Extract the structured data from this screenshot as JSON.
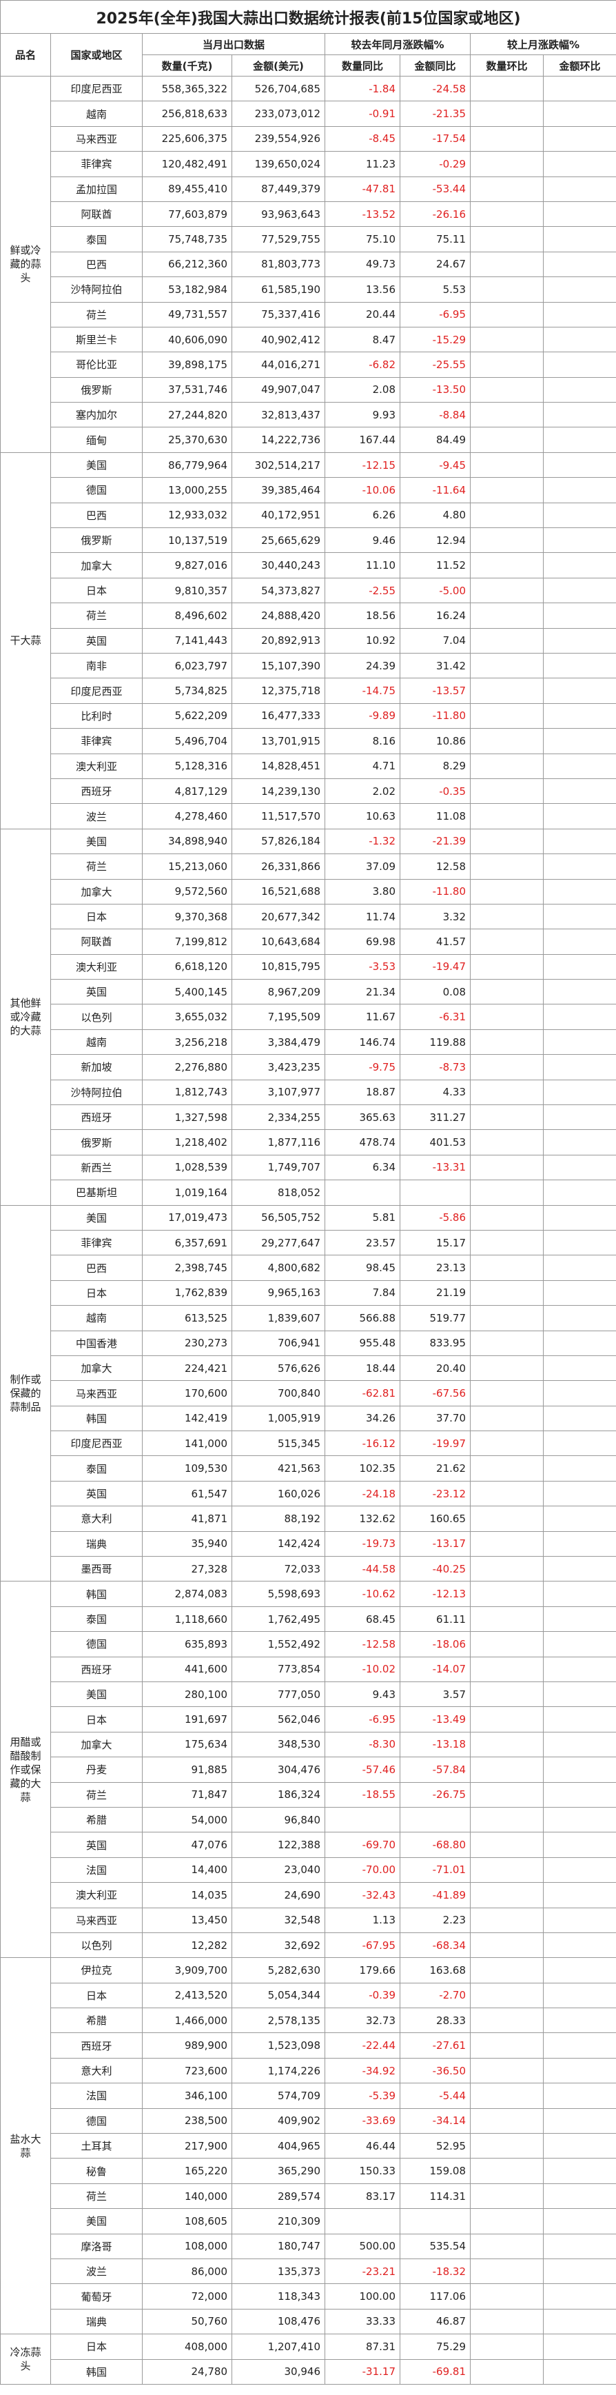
{
  "title": "2025年(全年)我国大蒜出口数据统计报表(前15位国家或地区)",
  "header": {
    "product": "品名",
    "country": "国家或地区",
    "month_data": "当月出口数据",
    "yoy": "较去年同月涨跌幅%",
    "mom": "较上月涨跌幅%",
    "sub": [
      "数量(千克)",
      "金额(美元)",
      "数量同比",
      "金额同比",
      "数量环比",
      "金额环比"
    ]
  },
  "groups": [
    {
      "name": "鲜或冷藏的蒜头",
      "rows": [
        [
          "印度尼西亚",
          "558,365,322",
          "526,704,685",
          "-1.84",
          "-24.58"
        ],
        [
          "越南",
          "256,818,633",
          "233,073,012",
          "-0.91",
          "-21.35"
        ],
        [
          "马来西亚",
          "225,606,375",
          "239,554,926",
          "-8.45",
          "-17.54"
        ],
        [
          "菲律宾",
          "120,482,491",
          "139,650,024",
          "11.23",
          "-0.29"
        ],
        [
          "孟加拉国",
          "89,455,410",
          "87,449,379",
          "-47.81",
          "-53.44"
        ],
        [
          "阿联酋",
          "77,603,879",
          "93,963,643",
          "-13.52",
          "-26.16"
        ],
        [
          "泰国",
          "75,748,735",
          "77,529,755",
          "75.10",
          "75.11"
        ],
        [
          "巴西",
          "66,212,360",
          "81,803,773",
          "49.73",
          "24.67"
        ],
        [
          "沙特阿拉伯",
          "53,182,984",
          "61,585,190",
          "13.56",
          "5.53"
        ],
        [
          "荷兰",
          "49,731,557",
          "75,337,416",
          "20.44",
          "-6.95"
        ],
        [
          "斯里兰卡",
          "40,606,090",
          "40,902,412",
          "8.47",
          "-15.29"
        ],
        [
          "哥伦比亚",
          "39,898,175",
          "44,016,271",
          "-6.82",
          "-25.55"
        ],
        [
          "俄罗斯",
          "37,531,746",
          "49,907,047",
          "2.08",
          "-13.50"
        ],
        [
          "塞内加尔",
          "27,244,820",
          "32,813,437",
          "9.93",
          "-8.84"
        ],
        [
          "缅甸",
          "25,370,630",
          "14,222,736",
          "167.44",
          "84.49"
        ]
      ]
    },
    {
      "name": "干大蒜",
      "rows": [
        [
          "美国",
          "86,779,964",
          "302,514,217",
          "-12.15",
          "-9.45"
        ],
        [
          "德国",
          "13,000,255",
          "39,385,464",
          "-10.06",
          "-11.64"
        ],
        [
          "巴西",
          "12,933,032",
          "40,172,951",
          "6.26",
          "4.80"
        ],
        [
          "俄罗斯",
          "10,137,519",
          "25,665,629",
          "9.46",
          "12.94"
        ],
        [
          "加拿大",
          "9,827,016",
          "30,440,243",
          "11.10",
          "11.52"
        ],
        [
          "日本",
          "9,810,357",
          "54,373,827",
          "-2.55",
          "-5.00"
        ],
        [
          "荷兰",
          "8,496,602",
          "24,888,420",
          "18.56",
          "16.24"
        ],
        [
          "英国",
          "7,141,443",
          "20,892,913",
          "10.92",
          "7.04"
        ],
        [
          "南非",
          "6,023,797",
          "15,107,390",
          "24.39",
          "31.42"
        ],
        [
          "印度尼西亚",
          "5,734,825",
          "12,375,718",
          "-14.75",
          "-13.57"
        ],
        [
          "比利时",
          "5,622,209",
          "16,477,333",
          "-9.89",
          "-11.80"
        ],
        [
          "菲律宾",
          "5,496,704",
          "13,701,915",
          "8.16",
          "10.86"
        ],
        [
          "澳大利亚",
          "5,128,316",
          "14,828,451",
          "4.71",
          "8.29"
        ],
        [
          "西班牙",
          "4,817,129",
          "14,239,130",
          "2.02",
          "-0.35"
        ],
        [
          "波兰",
          "4,278,460",
          "11,517,570",
          "10.63",
          "11.08"
        ]
      ]
    },
    {
      "name": "其他鲜或冷藏的大蒜",
      "rows": [
        [
          "美国",
          "34,898,940",
          "57,826,184",
          "-1.32",
          "-21.39"
        ],
        [
          "荷兰",
          "15,213,060",
          "26,331,866",
          "37.09",
          "12.58"
        ],
        [
          "加拿大",
          "9,572,560",
          "16,521,688",
          "3.80",
          "-11.80"
        ],
        [
          "日本",
          "9,370,368",
          "20,677,342",
          "11.74",
          "3.32"
        ],
        [
          "阿联酋",
          "7,199,812",
          "10,643,684",
          "69.98",
          "41.57"
        ],
        [
          "澳大利亚",
          "6,618,120",
          "10,815,795",
          "-3.53",
          "-19.47"
        ],
        [
          "英国",
          "5,400,145",
          "8,967,209",
          "21.34",
          "0.08"
        ],
        [
          "以色列",
          "3,655,032",
          "7,195,509",
          "11.67",
          "-6.31"
        ],
        [
          "越南",
          "3,256,218",
          "3,384,479",
          "146.74",
          "119.88"
        ],
        [
          "新加坡",
          "2,276,880",
          "3,423,235",
          "-9.75",
          "-8.73"
        ],
        [
          "沙特阿拉伯",
          "1,812,743",
          "3,107,977",
          "18.87",
          "4.33"
        ],
        [
          "西班牙",
          "1,327,598",
          "2,334,255",
          "365.63",
          "311.27"
        ],
        [
          "俄罗斯",
          "1,218,402",
          "1,877,116",
          "478.74",
          "401.53"
        ],
        [
          "新西兰",
          "1,028,539",
          "1,749,707",
          "6.34",
          "-13.31"
        ],
        [
          "巴基斯坦",
          "1,019,164",
          "818,052"
        ]
      ]
    },
    {
      "name": "制作或保藏的蒜制品",
      "rows": [
        [
          "美国",
          "17,019,473",
          "56,505,752",
          "5.81",
          "-5.86"
        ],
        [
          "菲律宾",
          "6,357,691",
          "29,277,647",
          "23.57",
          "15.17"
        ],
        [
          "巴西",
          "2,398,745",
          "4,800,682",
          "98.45",
          "23.13"
        ],
        [
          "日本",
          "1,762,839",
          "9,965,163",
          "7.84",
          "21.19"
        ],
        [
          "越南",
          "613,525",
          "1,839,607",
          "566.88",
          "519.77"
        ],
        [
          "中国香港",
          "230,273",
          "706,941",
          "955.48",
          "833.95"
        ],
        [
          "加拿大",
          "224,421",
          "576,626",
          "18.44",
          "20.40"
        ],
        [
          "马来西亚",
          "170,600",
          "700,840",
          "-62.81",
          "-67.56"
        ],
        [
          "韩国",
          "142,419",
          "1,005,919",
          "34.26",
          "37.70"
        ],
        [
          "印度尼西亚",
          "141,000",
          "515,345",
          "-16.12",
          "-19.97"
        ],
        [
          "泰国",
          "109,530",
          "421,563",
          "102.35",
          "21.62"
        ],
        [
          "英国",
          "61,547",
          "160,026",
          "-24.18",
          "-23.12"
        ],
        [
          "意大利",
          "41,871",
          "88,192",
          "132.62",
          "160.65"
        ],
        [
          "瑞典",
          "35,940",
          "142,424",
          "-19.73",
          "-13.17"
        ],
        [
          "墨西哥",
          "27,328",
          "72,033",
          "-44.58",
          "-40.25"
        ]
      ]
    },
    {
      "name": "用醋或醋酸制作或保藏的大蒜",
      "rows": [
        [
          "韩国",
          "2,874,083",
          "5,598,693",
          "-10.62",
          "-12.13"
        ],
        [
          "泰国",
          "1,118,660",
          "1,762,495",
          "68.45",
          "61.11"
        ],
        [
          "德国",
          "635,893",
          "1,552,492",
          "-12.58",
          "-18.06"
        ],
        [
          "西班牙",
          "441,600",
          "773,854",
          "-10.02",
          "-14.07"
        ],
        [
          "美国",
          "280,100",
          "777,050",
          "9.43",
          "3.57"
        ],
        [
          "日本",
          "191,697",
          "562,046",
          "-6.95",
          "-13.49"
        ],
        [
          "加拿大",
          "175,634",
          "348,530",
          "-8.30",
          "-13.18"
        ],
        [
          "丹麦",
          "91,885",
          "304,476",
          "-57.46",
          "-57.84"
        ],
        [
          "荷兰",
          "71,847",
          "186,324",
          "-18.55",
          "-26.75"
        ],
        [
          "希腊",
          "54,000",
          "96,840"
        ],
        [
          "英国",
          "47,076",
          "122,388",
          "-69.70",
          "-68.80"
        ],
        [
          "法国",
          "14,400",
          "23,040",
          "-70.00",
          "-71.01"
        ],
        [
          "澳大利亚",
          "14,035",
          "24,690",
          "-32.43",
          "-41.89"
        ],
        [
          "马来西亚",
          "13,450",
          "32,548",
          "1.13",
          "2.23"
        ],
        [
          "以色列",
          "12,282",
          "32,692",
          "-67.95",
          "-68.34"
        ]
      ]
    },
    {
      "name": "盐水大蒜",
      "rows": [
        [
          "伊拉克",
          "3,909,700",
          "5,282,630",
          "179.66",
          "163.68"
        ],
        [
          "日本",
          "2,413,520",
          "5,054,344",
          "-0.39",
          "-2.70"
        ],
        [
          "希腊",
          "1,466,000",
          "2,578,135",
          "32.73",
          "28.33"
        ],
        [
          "西班牙",
          "989,900",
          "1,523,098",
          "-22.44",
          "-27.61"
        ],
        [
          "意大利",
          "723,600",
          "1,174,226",
          "-34.92",
          "-36.50"
        ],
        [
          "法国",
          "346,100",
          "574,709",
          "-5.39",
          "-5.44"
        ],
        [
          "德国",
          "238,500",
          "409,902",
          "-33.69",
          "-34.14"
        ],
        [
          "土耳其",
          "217,900",
          "404,965",
          "46.44",
          "52.95"
        ],
        [
          "秘鲁",
          "165,220",
          "365,290",
          "150.33",
          "159.08"
        ],
        [
          "荷兰",
          "140,000",
          "289,574",
          "83.17",
          "114.31"
        ],
        [
          "美国",
          "108,605",
          "210,309"
        ],
        [
          "摩洛哥",
          "108,000",
          "180,747",
          "500.00",
          "535.54"
        ],
        [
          "波兰",
          "86,000",
          "135,373",
          "-23.21",
          "-18.32"
        ],
        [
          "葡萄牙",
          "72,000",
          "118,343",
          "100.00",
          "117.06"
        ],
        [
          "瑞典",
          "50,760",
          "108,476",
          "33.33",
          "46.87"
        ]
      ]
    },
    {
      "name": "冷冻蒜头",
      "rows": [
        [
          "日本",
          "408,000",
          "1,207,410",
          "87.31",
          "75.29"
        ],
        [
          "韩国",
          "24,780",
          "30,946",
          "-31.17",
          "-69.81"
        ]
      ]
    }
  ]
}
